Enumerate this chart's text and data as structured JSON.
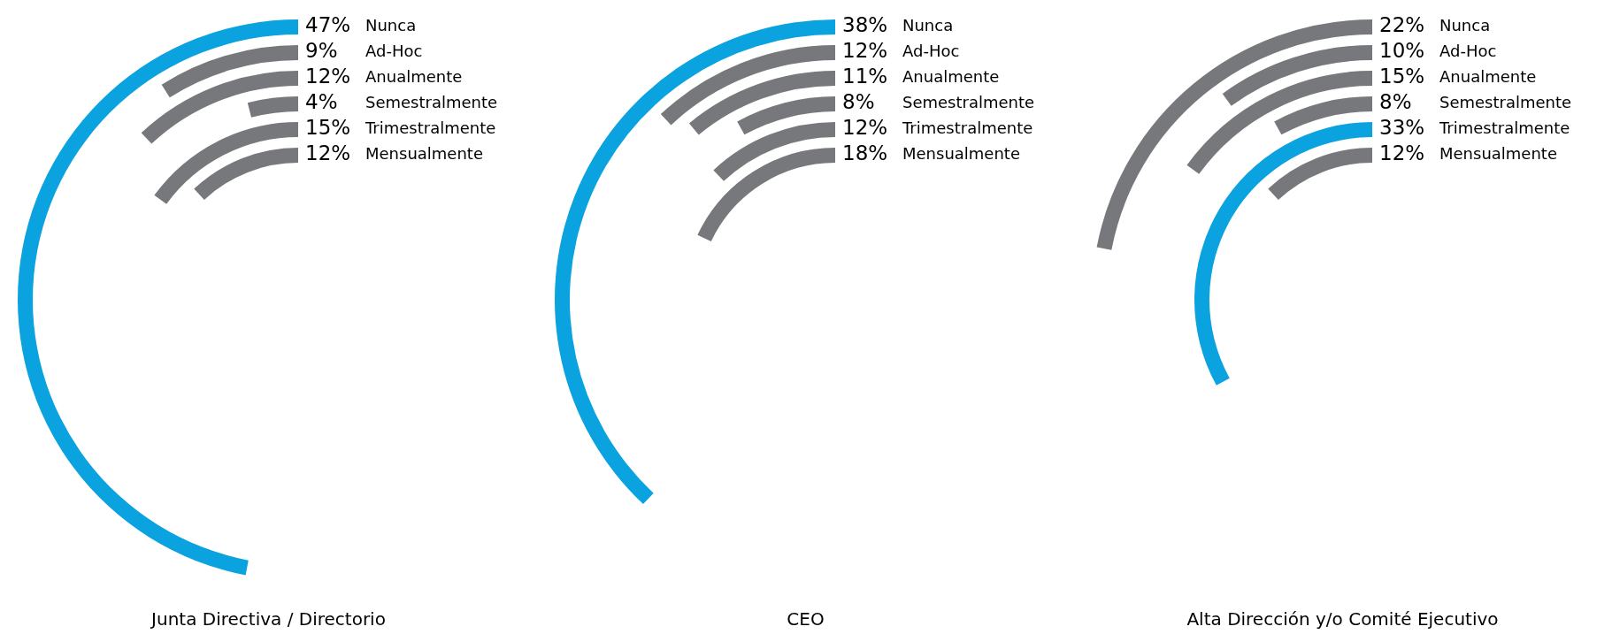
{
  "chart_data": [
    {
      "type": "other",
      "title": "Junta Directiva / Directorio",
      "categories": [
        "Nunca",
        "Ad-Hoc",
        "Anualmente",
        "Semestralmente",
        "Trimestralmente",
        "Mensualmente"
      ],
      "values": [
        47,
        9,
        12,
        4,
        15,
        12
      ],
      "colors": [
        "#0aa3df",
        "#76787b",
        "#76787b",
        "#76787b",
        "#76787b",
        "#76787b"
      ],
      "value_labels": [
        "47%",
        "9%",
        "12%",
        "4%",
        "15%",
        "12%"
      ]
    },
    {
      "type": "other",
      "title": "CEO",
      "categories": [
        "Nunca",
        "Ad-Hoc",
        "Anualmente",
        "Semestralmente",
        "Trimestralmente",
        "Mensualmente"
      ],
      "values": [
        38,
        12,
        11,
        8,
        12,
        18
      ],
      "colors": [
        "#0aa3df",
        "#76787b",
        "#76787b",
        "#76787b",
        "#76787b",
        "#76787b"
      ],
      "value_labels": [
        "38%",
        "12%",
        "11%",
        "8%",
        "12%",
        "18%"
      ]
    },
    {
      "type": "other",
      "title": "Alta Dirección y/o Comité Ejecutivo",
      "categories": [
        "Nunca",
        "Ad-Hoc",
        "Anualmente",
        "Semestralmente",
        "Trimestralmente",
        "Mensualmente"
      ],
      "values": [
        22,
        10,
        15,
        8,
        33,
        12
      ],
      "colors": [
        "#76787b",
        "#76787b",
        "#76787b",
        "#76787b",
        "#0aa3df",
        "#76787b"
      ],
      "value_labels": [
        "22%",
        "10%",
        "15%",
        "8%",
        "33%",
        "12%"
      ]
    }
  ]
}
